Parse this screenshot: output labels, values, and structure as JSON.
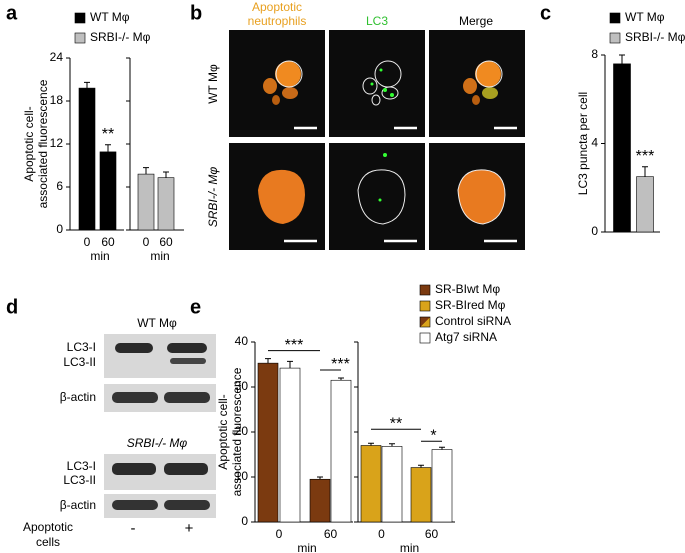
{
  "panel_labels": [
    "a",
    "b",
    "c",
    "d",
    "e"
  ],
  "chart_data": [
    {
      "type": "bar",
      "ylabel": [
        "Apoptotic cell-",
        "associated fluorescence"
      ],
      "ylim": [
        0,
        24
      ],
      "yticks": [
        0,
        6,
        12,
        18,
        24
      ],
      "legend": [
        {
          "name": "WT Mφ",
          "color": "#000000"
        },
        {
          "name": "SRBI-/- Mφ",
          "color": "#bfbfbf"
        }
      ],
      "groups": [
        {
          "categories": [
            "0",
            "60"
          ],
          "xlabel": "min",
          "series": [
            {
              "color": "#000000",
              "values": [
                19.8,
                10.9
              ],
              "errors": [
                0.8,
                1.0
              ]
            }
          ]
        },
        {
          "categories": [
            "0",
            "60"
          ],
          "xlabel": "min",
          "series": [
            {
              "color": "#bfbfbf",
              "values": [
                7.8,
                7.3
              ],
              "errors": [
                0.9,
                0.8
              ]
            }
          ]
        }
      ],
      "annotations": [
        "**"
      ]
    },
    {
      "type": "bar",
      "ylabel": [
        "LC3 puncta per cell"
      ],
      "ylim": [
        0,
        8
      ],
      "yticks": [
        0,
        4,
        8
      ],
      "legend": [
        {
          "name": "WT Mφ",
          "color": "#000000"
        },
        {
          "name": "SRBI-/- Mφ",
          "color": "#bfbfbf"
        }
      ],
      "groups": [
        {
          "series": [
            {
              "color": "#000000",
              "values": [
                7.6
              ],
              "errors": [
                0.4
              ]
            },
            {
              "color": "#bfbfbf",
              "values": [
                2.5
              ],
              "errors": [
                0.45
              ]
            }
          ]
        }
      ],
      "annotations": [
        "***"
      ]
    },
    {
      "type": "bar",
      "ylabel": [
        "Apoptotic cell-",
        "associated fluorescence"
      ],
      "ylim": [
        0,
        40
      ],
      "yticks": [
        0,
        10,
        20,
        30,
        40
      ],
      "legend": [
        {
          "name": "SR-BIwt Mφ",
          "color": "#7b3a10"
        },
        {
          "name": "SR-BIred Mφ",
          "color": "#d9a31a"
        },
        {
          "name": "Control siRNA",
          "color": "url(#split)"
        },
        {
          "name": "Atg7 siRNA",
          "color": "#ffffff"
        }
      ],
      "groups": [
        {
          "categories": [
            "0",
            "60"
          ],
          "xlabel": "min",
          "series": [
            {
              "color": "#7b3a10",
              "values": [
                35.3,
                9.5
              ],
              "errors": [
                1.0,
                0.5
              ]
            },
            {
              "color": "#ffffff",
              "values": [
                34.2,
                31.5
              ],
              "errors": [
                1.5,
                0.5
              ]
            }
          ]
        },
        {
          "categories": [
            "0",
            "60"
          ],
          "xlabel": "min",
          "series": [
            {
              "color": "#d9a31a",
              "values": [
                17.0,
                12.1
              ],
              "errors": [
                0.5,
                0.5
              ]
            },
            {
              "color": "#ffffff",
              "values": [
                16.8,
                16.1
              ],
              "errors": [
                0.6,
                0.5
              ]
            }
          ]
        }
      ],
      "annotations": [
        "***",
        "***",
        "**",
        "*"
      ]
    }
  ],
  "panel_b": {
    "columns": [
      [
        "Apoptotic",
        "neutrophils"
      ],
      [
        "LC3"
      ],
      [
        "Merge"
      ]
    ],
    "rows": [
      "WT Mφ",
      "SRBI-/- Mφ"
    ]
  },
  "panel_d": {
    "blots": [
      {
        "title": "WT Mφ",
        "bands": [
          "LC3-I",
          "LC3-II",
          "β-actin"
        ]
      },
      {
        "title": "SRBI-/- Mφ",
        "bands": [
          "LC3-I",
          "LC3-II",
          "β-actin"
        ]
      }
    ],
    "treatment": {
      "label": [
        "Apoptotic",
        "cells"
      ],
      "lanes": [
        "-",
        "+"
      ]
    }
  }
}
